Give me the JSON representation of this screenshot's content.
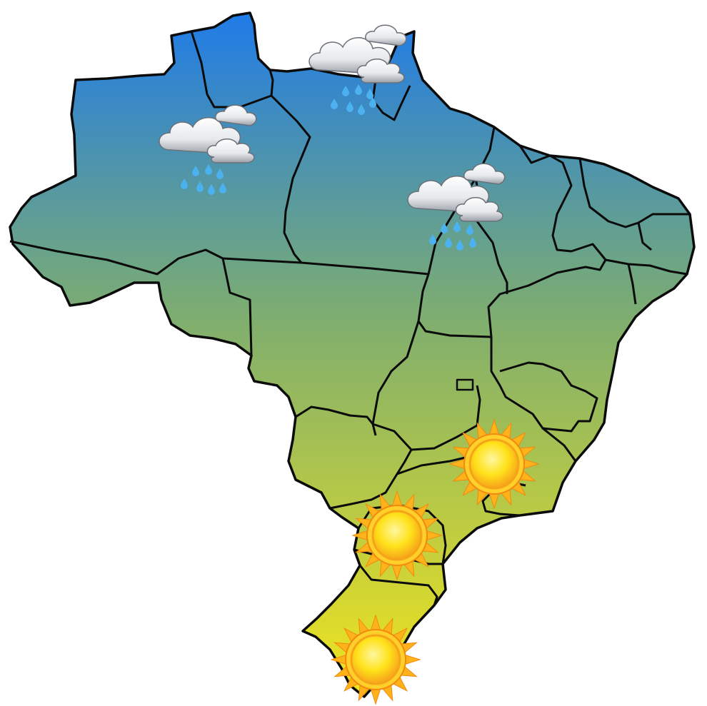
{
  "map": {
    "country": "",
    "gradient_colors": {
      "north": "#1f7be8",
      "middle": "#7fae6e",
      "south": "#f2e51c"
    },
    "border_color": "#0b0b0b",
    "weather_markers": [
      {
        "icon": "rain-cloud-icon",
        "condition": "rain"
      },
      {
        "icon": "rain-cloud-icon",
        "condition": "rain"
      },
      {
        "icon": "rain-cloud-icon",
        "condition": "rain"
      },
      {
        "icon": "sun-icon",
        "condition": "sunny"
      },
      {
        "icon": "sun-icon",
        "condition": "sunny"
      },
      {
        "icon": "sun-icon",
        "condition": "sunny"
      }
    ],
    "sun_colors": {
      "core": "#ffe21a",
      "rim": "#f6a21a",
      "rays": "#ffb21a"
    },
    "cloud_colors": {
      "light": "#ffffff",
      "shade": "#9aa0a8"
    },
    "rain_color": "#4cb2ef"
  }
}
